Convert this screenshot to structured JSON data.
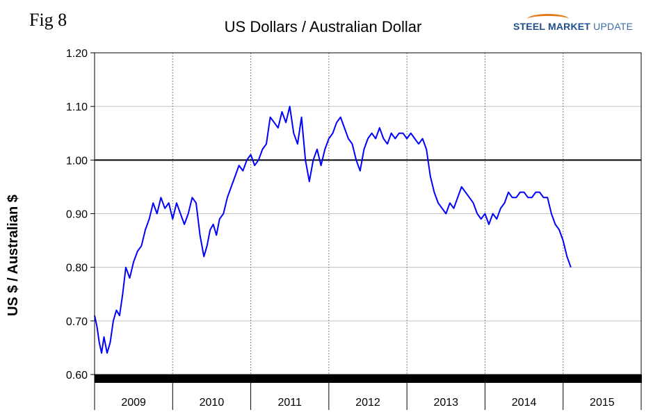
{
  "fig_label": "Fig 8",
  "logo": {
    "part1": "STEEL",
    "part2": "MARKET",
    "part3": "UPDATE"
  },
  "chart_data": {
    "type": "line",
    "title": "US Dollars  / Australian Dollar",
    "ylabel": "US $ / Australian $",
    "xlabel": "",
    "ylim": [
      0.6,
      1.2
    ],
    "yticks": [
      "0.60",
      "0.70",
      "0.80",
      "0.90",
      "1.00",
      "1.10",
      "1.20"
    ],
    "x_categories": [
      "2009",
      "2010",
      "2011",
      "2012",
      "2013",
      "2014",
      "2015"
    ],
    "xlim": [
      2009.0,
      2016.0
    ],
    "grid": true,
    "reference_line": 1.0,
    "color": "#0000ff",
    "series": [
      {
        "name": "",
        "x": [
          2009.0,
          2009.03,
          2009.06,
          2009.09,
          2009.12,
          2009.16,
          2009.2,
          2009.24,
          2009.28,
          2009.32,
          2009.36,
          2009.4,
          2009.45,
          2009.5,
          2009.55,
          2009.6,
          2009.65,
          2009.7,
          2009.75,
          2009.8,
          2009.85,
          2009.9,
          2009.95,
          2010.0,
          2010.05,
          2010.1,
          2010.15,
          2010.2,
          2010.25,
          2010.3,
          2010.35,
          2010.4,
          2010.44,
          2010.48,
          2010.52,
          2010.56,
          2010.6,
          2010.65,
          2010.7,
          2010.75,
          2010.8,
          2010.85,
          2010.9,
          2010.95,
          2011.0,
          2011.05,
          2011.1,
          2011.15,
          2011.2,
          2011.25,
          2011.3,
          2011.35,
          2011.4,
          2011.45,
          2011.5,
          2011.55,
          2011.6,
          2011.65,
          2011.7,
          2011.75,
          2011.8,
          2011.85,
          2011.9,
          2011.95,
          2012.0,
          2012.05,
          2012.1,
          2012.15,
          2012.2,
          2012.25,
          2012.3,
          2012.35,
          2012.4,
          2012.45,
          2012.5,
          2012.55,
          2012.6,
          2012.65,
          2012.7,
          2012.75,
          2012.8,
          2012.85,
          2012.9,
          2012.95,
          2013.0,
          2013.05,
          2013.1,
          2013.15,
          2013.2,
          2013.25,
          2013.3,
          2013.35,
          2013.4,
          2013.45,
          2013.5,
          2013.55,
          2013.6,
          2013.65,
          2013.7,
          2013.75,
          2013.8,
          2013.85,
          2013.9,
          2013.95,
          2014.0,
          2014.05,
          2014.1,
          2014.15,
          2014.2,
          2014.25,
          2014.3,
          2014.35,
          2014.4,
          2014.45,
          2014.5,
          2014.55,
          2014.6,
          2014.65,
          2014.7,
          2014.75,
          2014.8,
          2014.85,
          2014.9,
          2014.95,
          2015.0,
          2015.05,
          2015.1
        ],
        "y": [
          0.71,
          0.69,
          0.66,
          0.64,
          0.67,
          0.64,
          0.66,
          0.7,
          0.72,
          0.71,
          0.75,
          0.8,
          0.78,
          0.81,
          0.83,
          0.84,
          0.87,
          0.89,
          0.92,
          0.9,
          0.93,
          0.91,
          0.92,
          0.89,
          0.92,
          0.9,
          0.88,
          0.9,
          0.93,
          0.92,
          0.86,
          0.82,
          0.84,
          0.87,
          0.88,
          0.86,
          0.89,
          0.9,
          0.93,
          0.95,
          0.97,
          0.99,
          0.98,
          1.0,
          1.01,
          0.99,
          1.0,
          1.02,
          1.03,
          1.08,
          1.07,
          1.06,
          1.09,
          1.07,
          1.1,
          1.05,
          1.03,
          1.08,
          1.0,
          0.96,
          1.0,
          1.02,
          0.99,
          1.02,
          1.04,
          1.05,
          1.07,
          1.08,
          1.06,
          1.04,
          1.03,
          1.0,
          0.98,
          1.02,
          1.04,
          1.05,
          1.04,
          1.06,
          1.04,
          1.03,
          1.05,
          1.04,
          1.05,
          1.05,
          1.04,
          1.05,
          1.04,
          1.03,
          1.04,
          1.02,
          0.97,
          0.94,
          0.92,
          0.91,
          0.9,
          0.92,
          0.91,
          0.93,
          0.95,
          0.94,
          0.93,
          0.92,
          0.9,
          0.89,
          0.9,
          0.88,
          0.9,
          0.89,
          0.91,
          0.92,
          0.94,
          0.93,
          0.93,
          0.94,
          0.94,
          0.93,
          0.93,
          0.94,
          0.94,
          0.93,
          0.93,
          0.9,
          0.88,
          0.87,
          0.85,
          0.82,
          0.8
        ]
      }
    ]
  }
}
